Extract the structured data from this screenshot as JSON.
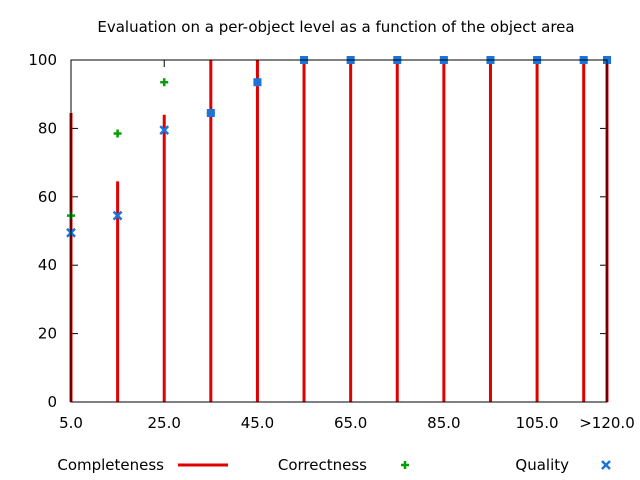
{
  "chart_data": {
    "type": "bar",
    "title": "Evaluation on a per-object level as a function of the object area",
    "xlabel": "",
    "ylabel": "",
    "ylim": [
      0,
      100
    ],
    "yticks": [
      "0",
      "20",
      "40",
      "60",
      "80",
      "100"
    ],
    "x": [
      5,
      15,
      25,
      35,
      45,
      55,
      65,
      75,
      85,
      95,
      105,
      115,
      120
    ],
    "xticks": [
      {
        "x": 5,
        "label": "5.0"
      },
      {
        "x": 25,
        "label": "25.0"
      },
      {
        "x": 45,
        "label": "45.0"
      },
      {
        "x": 65,
        "label": "65.0"
      },
      {
        "x": 85,
        "label": "85.0"
      },
      {
        "x": 105,
        "label": "105.0"
      },
      {
        "x": 120,
        "label": ">120.0"
      }
    ],
    "xlim": [
      5,
      120
    ],
    "grid": false,
    "legend_position": "bottom",
    "series": [
      {
        "name": "Completeness",
        "style": "impulses",
        "color": "#e00000",
        "values": [
          84.5,
          64.5,
          84.0,
          100,
          100,
          100,
          100,
          100,
          100,
          100,
          100,
          100,
          100
        ]
      },
      {
        "name": "Correctness",
        "style": "plus",
        "color": "#00a000",
        "values": [
          54.5,
          78.5,
          93.5,
          84.5,
          93.5,
          100,
          100,
          100,
          100,
          100,
          100,
          100,
          100
        ]
      },
      {
        "name": "Quality",
        "style": "cross-square",
        "color": "#1a74d9",
        "values": [
          49.5,
          54.5,
          79.5,
          84.5,
          93.5,
          100,
          100,
          100,
          100,
          100,
          100,
          100,
          100
        ]
      }
    ]
  }
}
